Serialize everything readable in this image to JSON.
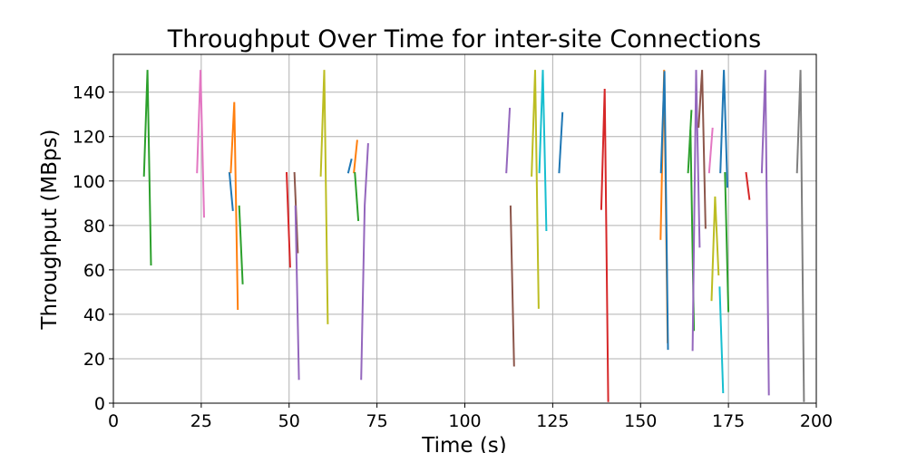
{
  "chart_data": {
    "type": "line",
    "title": "Throughput Over Time for inter-site Connections",
    "xlabel": "Time (s)",
    "ylabel": "Throughput (MBps)",
    "xlim": [
      0,
      200
    ],
    "ylim": [
      0,
      157
    ],
    "xticks": [
      0,
      25,
      50,
      75,
      100,
      125,
      150,
      175,
      200
    ],
    "yticks": [
      0,
      20,
      40,
      60,
      80,
      100,
      120,
      140
    ],
    "grid": true,
    "legend": "none",
    "colors": [
      "#1f77b4",
      "#ff7f0e",
      "#2ca02c",
      "#d62728",
      "#9467bd",
      "#8c564b",
      "#e377c2",
      "#7f7f7f",
      "#bcbd22",
      "#17becf"
    ],
    "series": [
      {
        "color": "#2ca02c",
        "points": [
          [
            8.7,
            102
          ],
          [
            9.7,
            150
          ],
          [
            10.7,
            62
          ]
        ]
      },
      {
        "color": "#e377c2",
        "points": [
          [
            23.8,
            103.5
          ],
          [
            24.8,
            150
          ],
          [
            25.8,
            83.5
          ]
        ]
      },
      {
        "color": "#1f77b4",
        "points": [
          [
            33.0,
            104
          ],
          [
            34.0,
            86.5
          ]
        ]
      },
      {
        "color": "#ff7f0e",
        "points": [
          [
            33.4,
            103.5
          ],
          [
            34.4,
            135.5
          ],
          [
            35.4,
            42
          ]
        ]
      },
      {
        "color": "#2ca02c",
        "points": [
          [
            35.8,
            89
          ],
          [
            36.8,
            53.5
          ]
        ]
      },
      {
        "color": "#d62728",
        "points": [
          [
            49.3,
            104
          ],
          [
            50.3,
            61
          ]
        ]
      },
      {
        "color": "#8c564b",
        "points": [
          [
            51.5,
            104
          ],
          [
            52.5,
            67.5
          ]
        ]
      },
      {
        "color": "#9467bd",
        "points": [
          [
            51.8,
            89
          ],
          [
            52.8,
            10.5
          ]
        ]
      },
      {
        "color": "#bcbd22",
        "points": [
          [
            59.0,
            102
          ],
          [
            60.0,
            150
          ],
          [
            61.0,
            35.5
          ]
        ]
      },
      {
        "color": "#1f77b4",
        "points": [
          [
            66.8,
            103.5
          ],
          [
            67.8,
            110
          ]
        ]
      },
      {
        "color": "#ff7f0e",
        "points": [
          [
            68.4,
            103.5
          ],
          [
            69.4,
            118.5
          ]
        ]
      },
      {
        "color": "#2ca02c",
        "points": [
          [
            68.7,
            104
          ],
          [
            69.7,
            82
          ]
        ]
      },
      {
        "color": "#9467bd",
        "points": [
          [
            70.5,
            10.5
          ],
          [
            71.5,
            89
          ],
          [
            72.5,
            117
          ]
        ]
      },
      {
        "color": "#9467bd",
        "points": [
          [
            111.8,
            103.5
          ],
          [
            112.8,
            133
          ]
        ]
      },
      {
        "color": "#8c564b",
        "points": [
          [
            113.0,
            89
          ],
          [
            114.0,
            16.5
          ]
        ]
      },
      {
        "color": "#bcbd22",
        "points": [
          [
            119.0,
            102
          ],
          [
            120.0,
            150
          ],
          [
            121.0,
            42.5
          ]
        ]
      },
      {
        "color": "#17becf",
        "points": [
          [
            121.2,
            103.5
          ],
          [
            122.2,
            150
          ],
          [
            123.2,
            77.5
          ]
        ]
      },
      {
        "color": "#1f77b4",
        "points": [
          [
            126.8,
            103.5
          ],
          [
            127.8,
            131
          ]
        ]
      },
      {
        "color": "#d62728",
        "points": [
          [
            138.8,
            87
          ],
          [
            139.8,
            141.5
          ],
          [
            140.8,
            0.5
          ]
        ]
      },
      {
        "color": "#ff7f0e",
        "points": [
          [
            155.7,
            73.5
          ],
          [
            156.7,
            150
          ],
          [
            157.7,
            27
          ]
        ]
      },
      {
        "color": "#1f77b4",
        "points": [
          [
            155.8,
            103.5
          ],
          [
            156.8,
            149.5
          ],
          [
            157.8,
            24
          ]
        ]
      },
      {
        "color": "#2ca02c",
        "points": [
          [
            163.5,
            103.5
          ],
          [
            164.5,
            132
          ]
        ]
      },
      {
        "color": "#2ca02c",
        "points": [
          [
            164.2,
            123
          ],
          [
            165.2,
            32.5
          ]
        ]
      },
      {
        "color": "#9467bd",
        "points": [
          [
            164.8,
            23.5
          ],
          [
            165.8,
            150
          ],
          [
            166.8,
            70
          ]
        ]
      },
      {
        "color": "#8c564b",
        "points": [
          [
            166.5,
            124
          ],
          [
            167.5,
            150
          ],
          [
            168.5,
            78.5
          ]
        ]
      },
      {
        "color": "#e377c2",
        "points": [
          [
            169.5,
            103.5
          ],
          [
            170.5,
            124
          ]
        ]
      },
      {
        "color": "#bcbd22",
        "points": [
          [
            170.2,
            46
          ],
          [
            171.2,
            93
          ],
          [
            172.2,
            57.5
          ]
        ]
      },
      {
        "color": "#17becf",
        "points": [
          [
            172.5,
            52.5
          ],
          [
            173.5,
            4.5
          ]
        ]
      },
      {
        "color": "#1f77b4",
        "points": [
          [
            172.7,
            103.5
          ],
          [
            173.7,
            150
          ],
          [
            174.7,
            97
          ]
        ]
      },
      {
        "color": "#2ca02c",
        "points": [
          [
            174.0,
            104
          ],
          [
            175.0,
            41
          ]
        ]
      },
      {
        "color": "#d62728",
        "points": [
          [
            180.0,
            104
          ],
          [
            181.0,
            91.5
          ]
        ]
      },
      {
        "color": "#9467bd",
        "points": [
          [
            184.5,
            103.5
          ],
          [
            185.5,
            150
          ],
          [
            186.5,
            3.5
          ]
        ]
      },
      {
        "color": "#7f7f7f",
        "points": [
          [
            194.5,
            103.5
          ],
          [
            195.5,
            150
          ],
          [
            196.5,
            0.5
          ]
        ]
      }
    ]
  }
}
